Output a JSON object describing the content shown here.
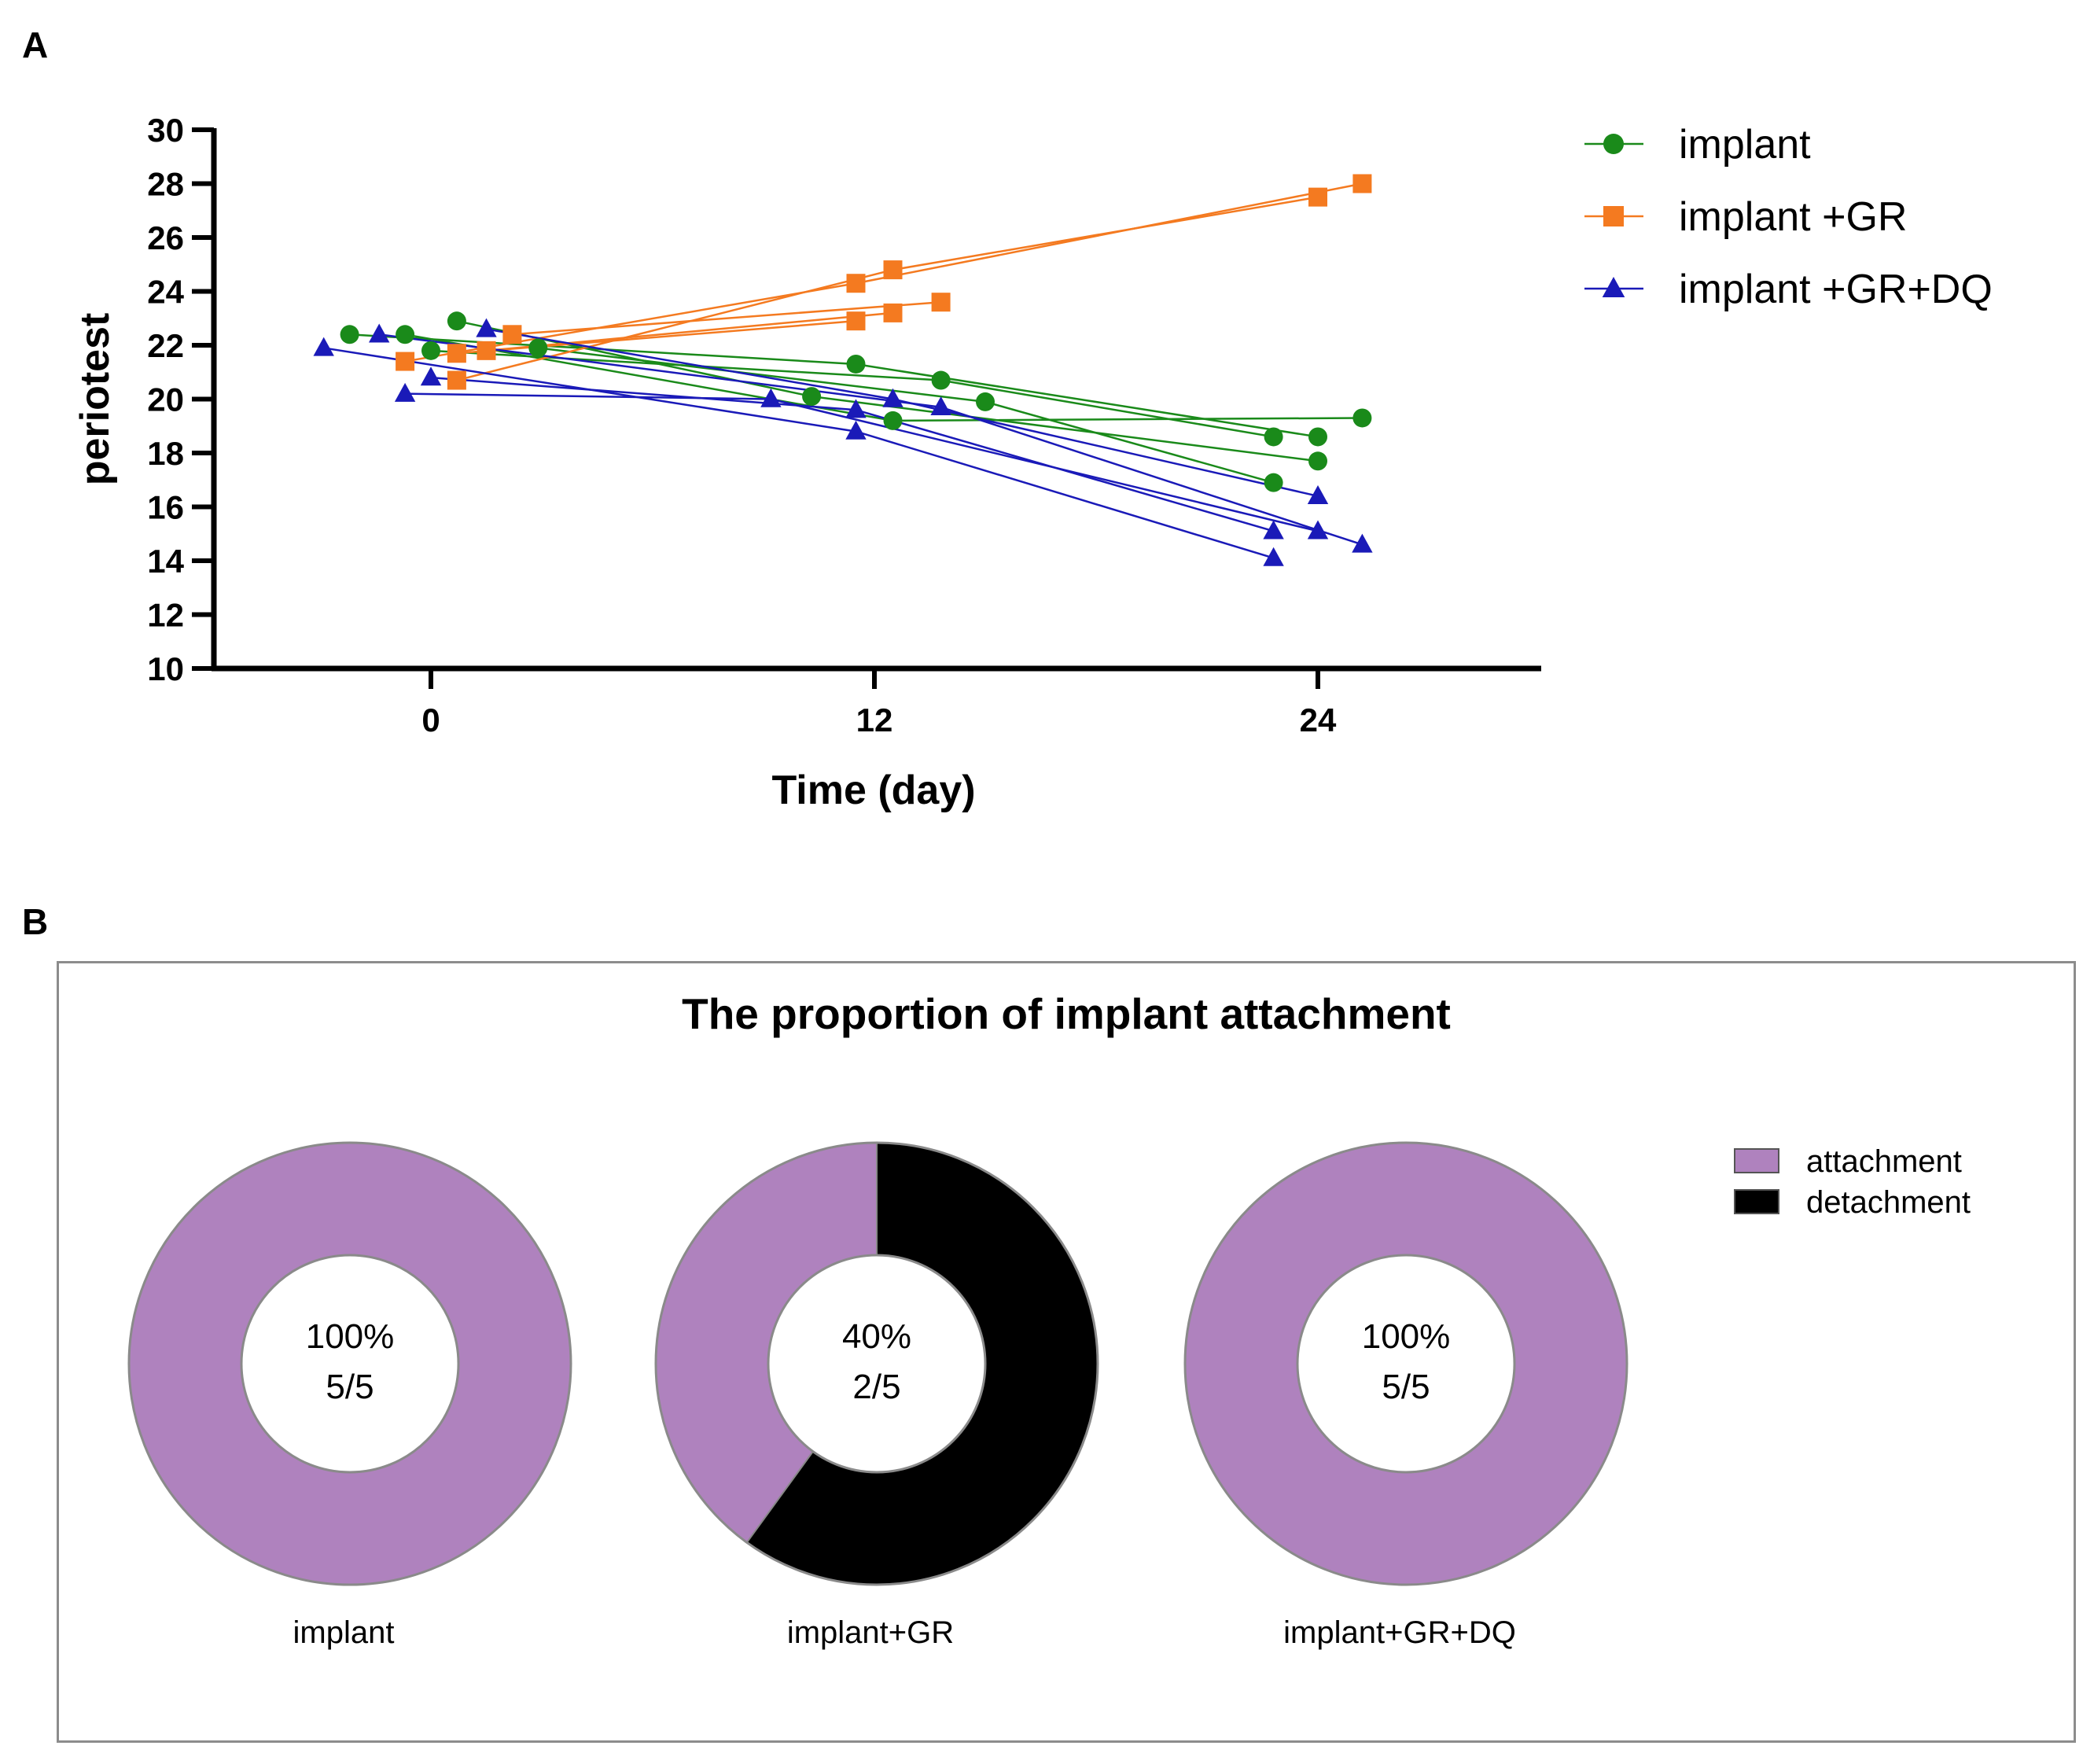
{
  "panels": {
    "a_label": "A",
    "b_label": "B"
  },
  "chart_data": [
    {
      "type": "line",
      "panel": "A",
      "title": "",
      "xlabel": "Time (day)",
      "ylabel": "periotest",
      "x_ticks": [
        "0",
        "12",
        "24"
      ],
      "y_ticks": [
        "10",
        "12",
        "14",
        "16",
        "18",
        "20",
        "22",
        "24",
        "26",
        "28",
        "30"
      ],
      "ylim": [
        10,
        30
      ],
      "xlim": [
        -6,
        30
      ],
      "legend_position": "top-right",
      "series": [
        {
          "name": "implant",
          "color": "#1a8a1a",
          "marker": "circle",
          "subjects": [
            {
              "x": [
                -2.2,
                11.5,
                24
              ],
              "y": [
                22.4,
                21.3,
                18.6
              ]
            },
            {
              "x": [
                -0.7,
                12.5,
                25.2
              ],
              "y": [
                22.4,
                19.2,
                19.3
              ]
            },
            {
              "x": [
                0,
                13.8,
                22.8
              ],
              "y": [
                21.8,
                20.7,
                18.6
              ]
            },
            {
              "x": [
                0.7,
                10.3,
                24
              ],
              "y": [
                22.9,
                20.1,
                17.7
              ]
            },
            {
              "x": [
                2.9,
                15,
                22.8
              ],
              "y": [
                21.9,
                19.9,
                16.9
              ]
            }
          ]
        },
        {
          "name": "implant +GR",
          "color": "#f47a20",
          "marker": "square",
          "subjects": [
            {
              "x": [
                -0.7,
                11.5,
                25.2
              ],
              "y": [
                21.4,
                24.3,
                28.0
              ]
            },
            {
              "x": [
                0.7,
                12.5,
                24
              ],
              "y": [
                20.7,
                24.8,
                27.5
              ]
            },
            {
              "x": [
                0.7,
                11.5
              ],
              "y": [
                21.7,
                22.9
              ]
            },
            {
              "x": [
                1.5,
                12.5
              ],
              "y": [
                21.8,
                23.2
              ]
            },
            {
              "x": [
                2.2,
                13.8
              ],
              "y": [
                22.4,
                23.6
              ]
            }
          ]
        },
        {
          "name": "implant +GR+DQ",
          "color": "#1a1ab8",
          "marker": "triangle",
          "subjects": [
            {
              "x": [
                -2.9,
                11.5,
                22.8
              ],
              "y": [
                21.9,
                18.8,
                14.1
              ]
            },
            {
              "x": [
                -1.4,
                13.8,
                25.2
              ],
              "y": [
                22.4,
                19.7,
                14.6
              ]
            },
            {
              "x": [
                -0.7,
                9.2,
                24
              ],
              "y": [
                20.2,
                20.0,
                15.1
              ]
            },
            {
              "x": [
                0,
                11.5,
                22.8
              ],
              "y": [
                20.8,
                19.6,
                15.1
              ]
            },
            {
              "x": [
                1.5,
                12.5,
                24
              ],
              "y": [
                22.6,
                20.0,
                16.4
              ]
            }
          ]
        }
      ]
    },
    {
      "type": "pie",
      "panel": "B",
      "title": "The proportion of implant attachment",
      "legend_position": "top-right",
      "legend": [
        {
          "label": "attachment",
          "color": "#af82be"
        },
        {
          "label": "detachment",
          "color": "#000000"
        }
      ],
      "donuts": [
        {
          "label": "implant",
          "attachment": 5,
          "detachment": 0,
          "percent": "100%",
          "ratio": "5/5"
        },
        {
          "label": "implant+GR",
          "attachment": 2,
          "detachment": 3,
          "percent": "40%",
          "ratio": "2/5"
        },
        {
          "label": "implant+GR+DQ",
          "attachment": 5,
          "detachment": 0,
          "percent": "100%",
          "ratio": "5/5"
        }
      ]
    }
  ]
}
